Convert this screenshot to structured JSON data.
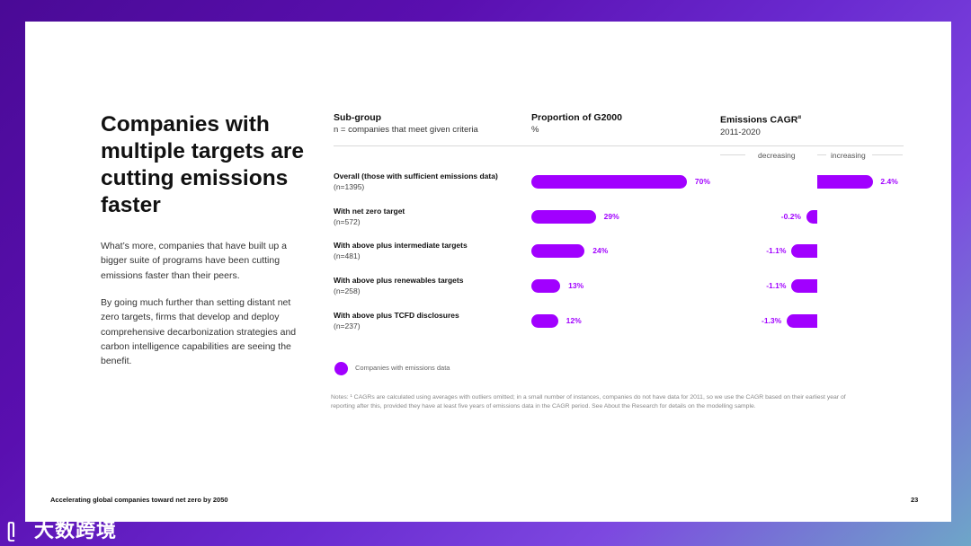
{
  "headline": "Companies with multiple targets are cutting emissions faster",
  "paragraphs": [
    "What’s more, companies that have built up a bigger suite of programs have been cutting emissions faster than their peers.",
    "By going much further than setting distant net zero targets, firms that develop and deploy comprehensive decarbonization strategies and carbon intelligence capabilities are seeing the benefit."
  ],
  "columns": {
    "subgroup": {
      "title": "Sub-group",
      "subtitle": "n = companies that meet given criteria"
    },
    "proportion": {
      "title": "Proportion of G2000",
      "subtitle": "%"
    },
    "cagr": {
      "title": "Emissions CAGR",
      "sup": "α",
      "subtitle": "2011-2020",
      "decreasing": "decreasing",
      "increasing": "increasing"
    }
  },
  "chart_data": {
    "type": "bar",
    "categories": [
      "Overall (those with sufficient emissions data)",
      "With net zero target",
      "With above plus intermediate targets",
      "With above plus renewables targets",
      "With above plus TCFD disclosures"
    ],
    "counts": [
      "(n=1395)",
      "(n=572)",
      "(n=481)",
      "(n=258)",
      "(n=237)"
    ],
    "series": [
      {
        "name": "Proportion of G2000",
        "values": [
          70,
          29,
          24,
          13,
          12
        ],
        "labels": [
          "70%",
          "29%",
          "24%",
          "13%",
          "12%"
        ]
      },
      {
        "name": "Emissions CAGR",
        "values": [
          2.4,
          -0.2,
          -1.1,
          -1.1,
          -1.3
        ],
        "labels": [
          "2.4%",
          "-0.2%",
          "-1.1%",
          "-1.1%",
          "-1.3%"
        ]
      }
    ],
    "color": "#a100ff"
  },
  "legend": {
    "label": "Companies with emissions data"
  },
  "notes": "Notes: ¹ CAGRs are calculated using averages with outliers omitted; in a small number of instances, companies do not have data for 2011, so we use the CAGR based on their earliest year of reporting after this, provided they have at least five years of emissions data in the CAGR period. See About the Research for details on the modelling sample.",
  "footer": "Accelerating global companies toward net zero by 2050",
  "page_number": "23",
  "watermark": "大数跨境"
}
